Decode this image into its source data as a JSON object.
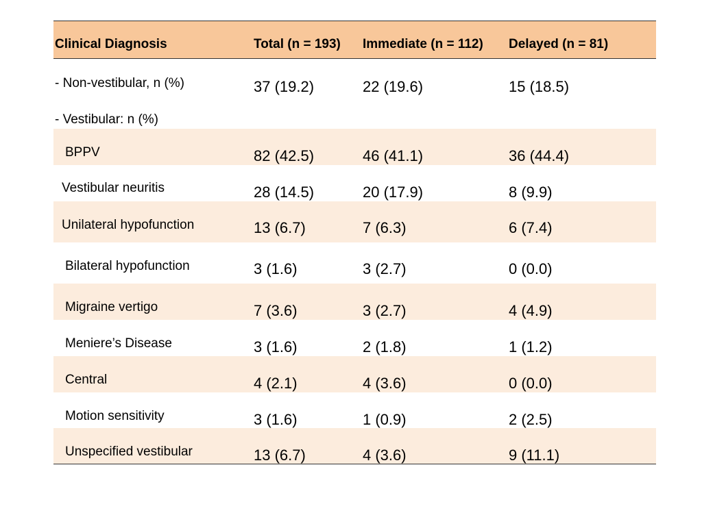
{
  "table": {
    "headers": [
      "Clinical Diagnosis",
      "Total (n = 193)",
      "Immediate (n = 112)",
      "Delayed (n = 81)"
    ],
    "rows": [
      {
        "label": "- Non-vestibular, n (%)",
        "values": [
          "37 (19.2)",
          "22 (19.6)",
          "15 (18.5)"
        ]
      },
      {
        "label": "- Vestibular: n (%)",
        "values": [
          "",
          "",
          ""
        ]
      },
      {
        "label": "BPPV",
        "values": [
          "82 (42.5)",
          "46 (41.1)",
          "36 (44.4)"
        ]
      },
      {
        "label": "Vestibular neuritis",
        "values": [
          "28 (14.5)",
          "20 (17.9)",
          "8 (9.9)"
        ]
      },
      {
        "label": "Unilateral hypofunction",
        "values": [
          "13 (6.7)",
          "7 (6.3)",
          "6 (7.4)"
        ]
      },
      {
        "label": "Bilateral hypofunction",
        "values": [
          "3 (1.6)",
          "3 (2.7)",
          "0 (0.0)"
        ]
      },
      {
        "label": "Migraine vertigo",
        "values": [
          "7 (3.6)",
          "3 (2.7)",
          "4 (4.9)"
        ]
      },
      {
        "label": "Meniere’s Disease",
        "values": [
          "3 (1.6)",
          "2 (1.8)",
          "1 (1.2)"
        ]
      },
      {
        "label": "Central",
        "values": [
          "4 (2.1)",
          "4 (3.6)",
          "0 (0.0)"
        ]
      },
      {
        "label": "Motion sensitivity",
        "values": [
          "3 (1.6)",
          "1 (0.9)",
          "2 (2.5)"
        ]
      },
      {
        "label": "Unspecified vestibular",
        "values": [
          "13 (6.7)",
          "4 (3.6)",
          "9 (11.1)"
        ]
      }
    ]
  },
  "colors": {
    "header_bg": "#f8c79a",
    "shaded_row_bg": "#fcecdd",
    "rule": "#333333"
  }
}
